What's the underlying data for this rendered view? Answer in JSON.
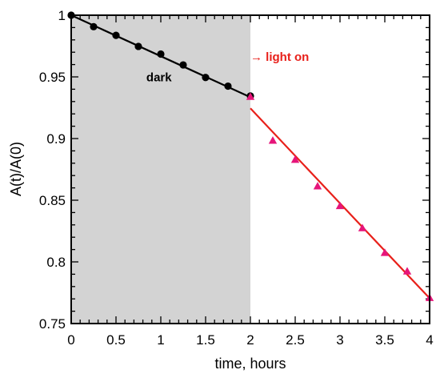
{
  "chart_data": {
    "type": "scatter",
    "xlabel": "time, hours",
    "ylabel": "A(t)/A(0)",
    "xlim": [
      0,
      4
    ],
    "ylim": [
      0.75,
      1
    ],
    "x_ticks": [
      0,
      0.5,
      1,
      1.5,
      2,
      2.5,
      3,
      3.5,
      4
    ],
    "x_tick_labels": [
      "0",
      "0.5",
      "1",
      "1.5",
      "2",
      "2.5",
      "3",
      "3.5",
      "4"
    ],
    "y_ticks": [
      0.75,
      0.8,
      0.85,
      0.9,
      0.95,
      1
    ],
    "y_tick_labels": [
      "0.75",
      "0.8",
      "0.85",
      "0.9",
      "0.95",
      "1"
    ],
    "grid": false,
    "shaded_region": {
      "x_range": [
        0,
        2
      ],
      "label": "dark",
      "color": "#d3d3d3"
    },
    "annotations": [
      {
        "text": "dark",
        "x": 0.98,
        "y": 0.9465,
        "color": "#000000"
      },
      {
        "text": "→ light on",
        "x": 2.0,
        "y": 0.963,
        "color": "#e8201a"
      }
    ],
    "series": [
      {
        "marker": "circle",
        "color": "#000000",
        "x": [
          0,
          0.25,
          0.5,
          0.75,
          1.0,
          1.25,
          1.5,
          1.75,
          2.0
        ],
        "y": [
          1.0,
          0.9907,
          0.9837,
          0.9747,
          0.9685,
          0.9597,
          0.9495,
          0.9425,
          0.9345
        ],
        "fit": {
          "x": [
            0,
            2
          ],
          "y": [
            1.0,
            0.9335
          ]
        }
      },
      {
        "marker": "triangle",
        "color": "#e6157a",
        "x": [
          2.0,
          2.25,
          2.5,
          2.75,
          3.0,
          3.25,
          3.5,
          3.75,
          4.0
        ],
        "y": [
          0.934,
          0.8985,
          0.883,
          0.8615,
          0.8455,
          0.8275,
          0.8075,
          0.7925,
          0.771
        ],
        "fit": {
          "x": [
            2,
            4
          ],
          "y": [
            0.9245,
            0.7705
          ],
          "color": "#e8201a"
        }
      }
    ]
  }
}
